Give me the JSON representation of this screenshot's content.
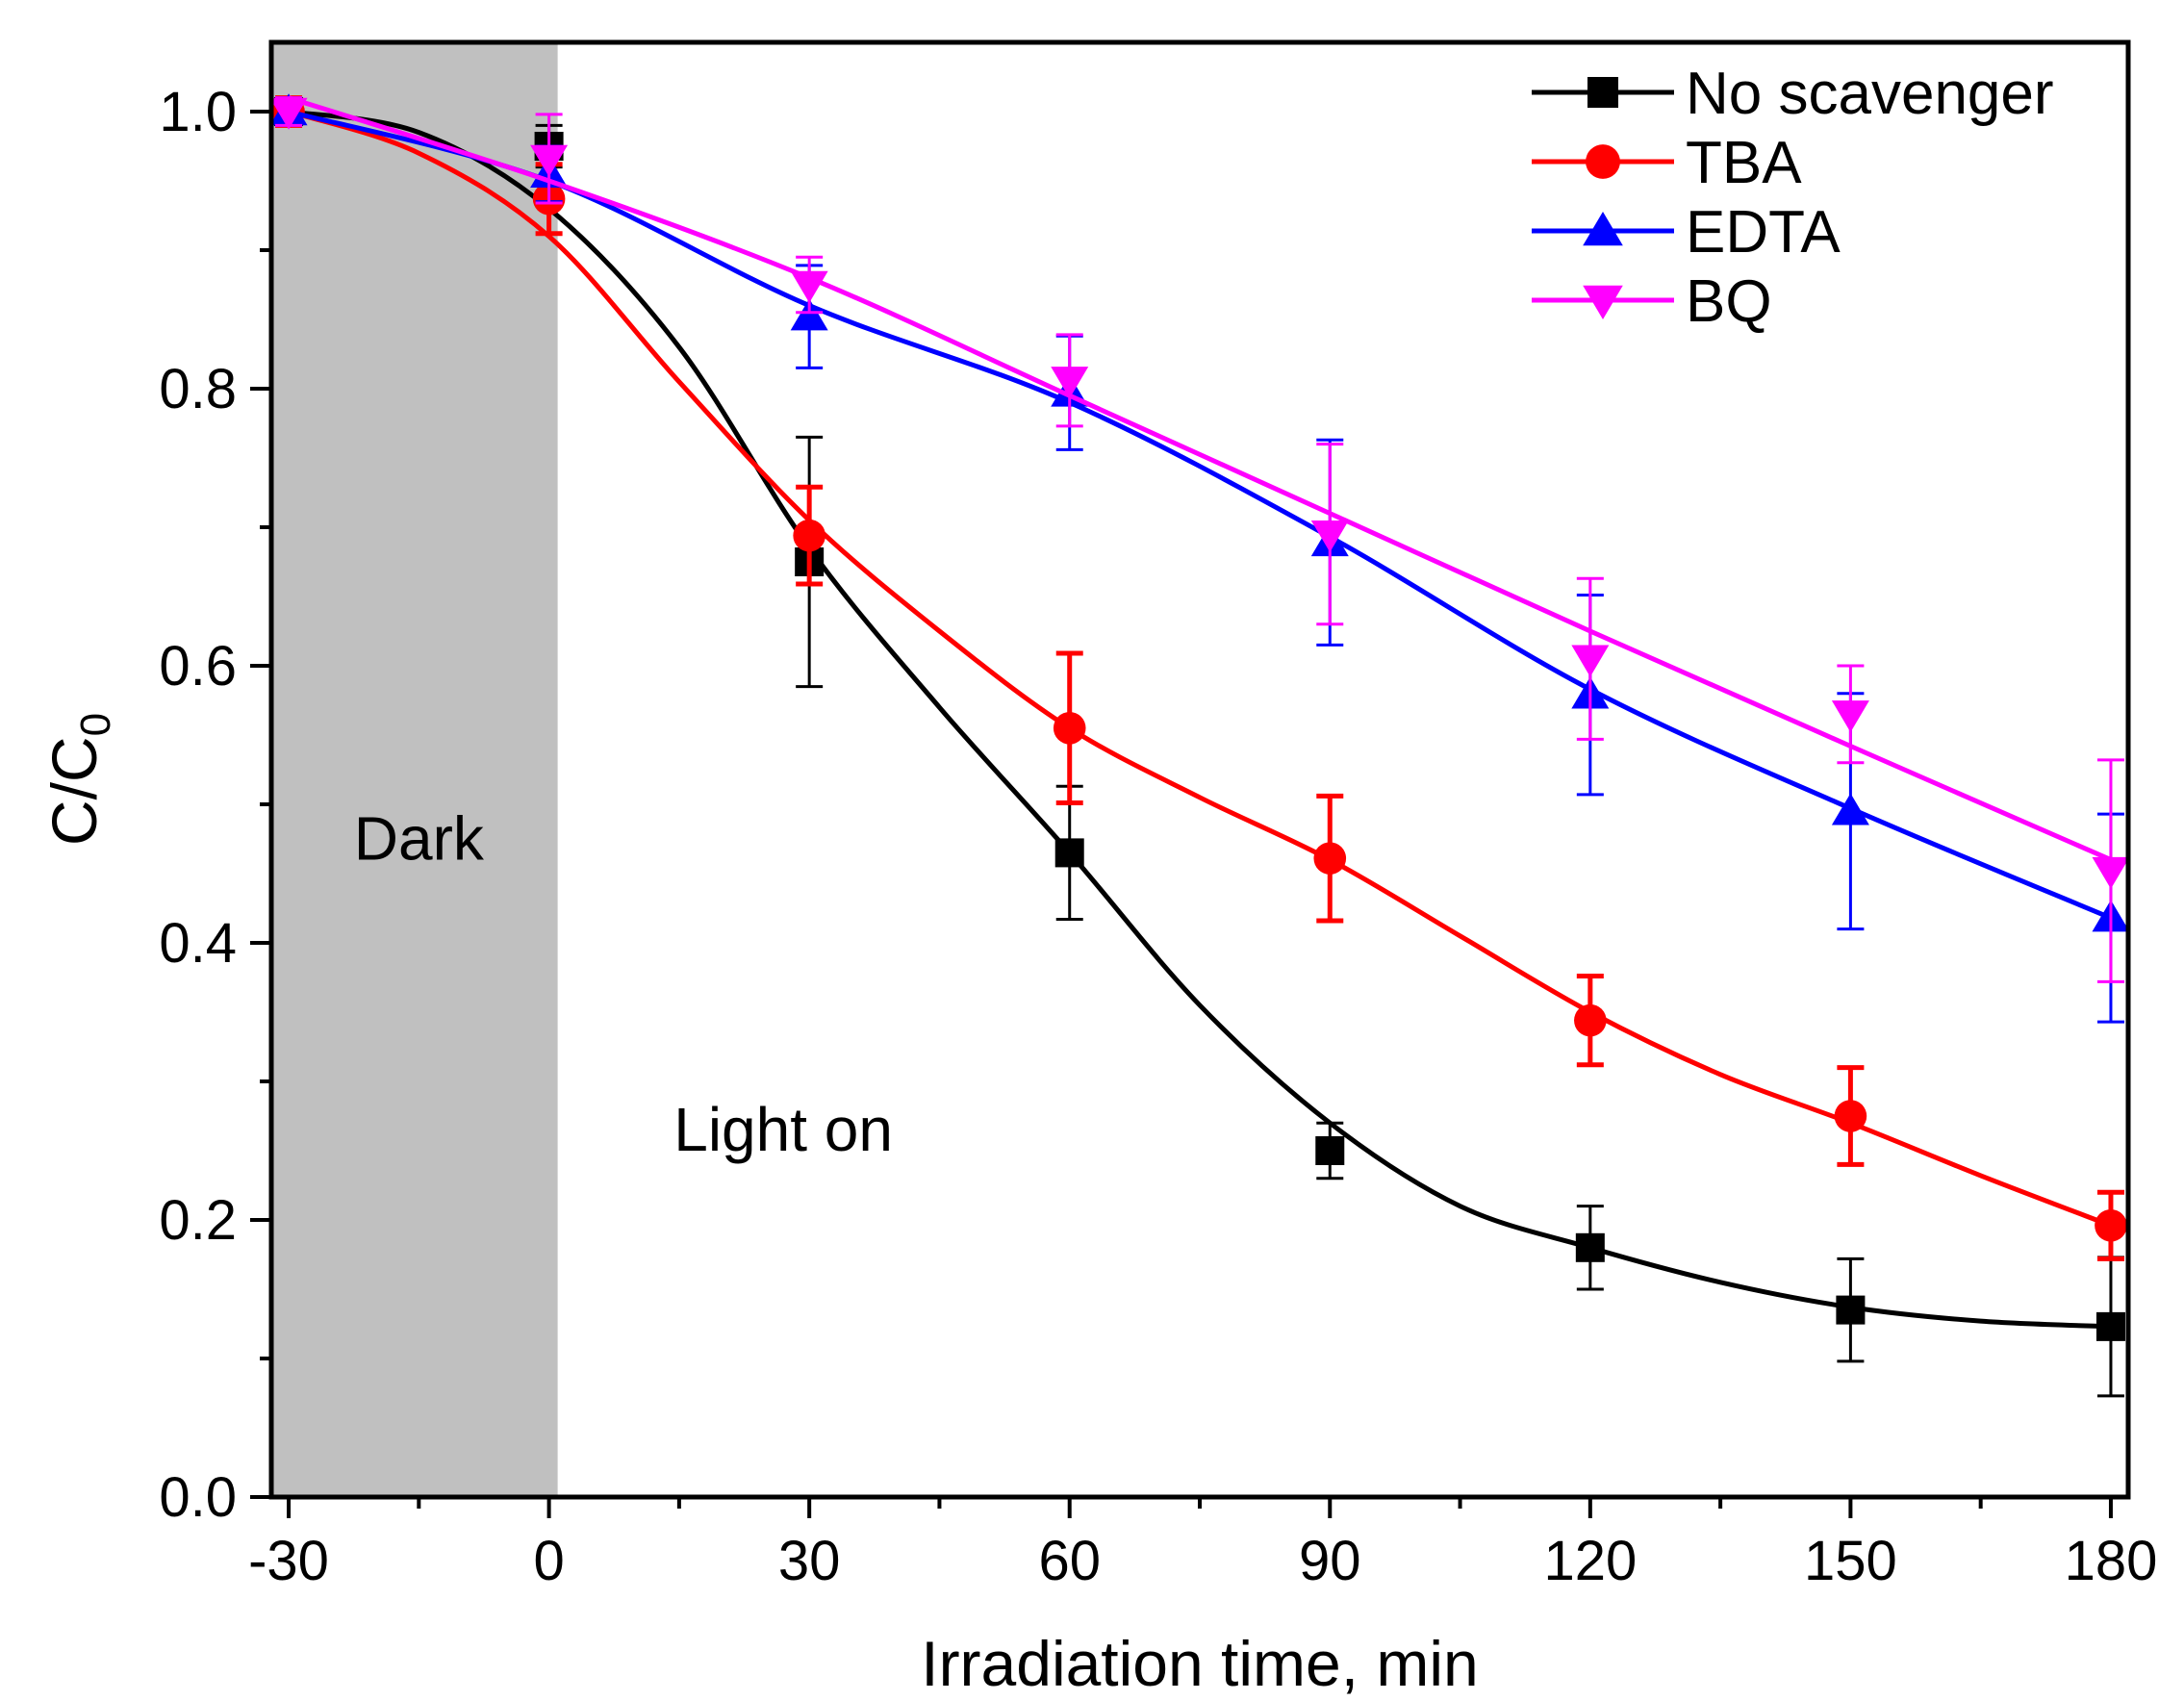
{
  "chart_data": {
    "type": "line",
    "title": "",
    "xlabel": "Irradiation time, min",
    "ylabel_main": "C/C",
    "ylabel_sub": "0",
    "xlim": [
      -32,
      182
    ],
    "ylim": [
      0,
      1.05
    ],
    "xticks": [
      -30,
      0,
      30,
      60,
      90,
      120,
      150,
      180
    ],
    "xtick_labels": [
      "-30",
      "0",
      "30",
      "60",
      "90",
      "120",
      "150",
      "180"
    ],
    "yticks": [
      0.0,
      0.2,
      0.4,
      0.6,
      0.8,
      1.0
    ],
    "ytick_labels": [
      "0.0",
      "0.2",
      "0.4",
      "0.6",
      "0.8",
      "1.0"
    ],
    "legend_position": "top-right",
    "shaded_region": {
      "x_start": -32,
      "x_end": 1,
      "color": "#c0c0c0",
      "label": "Dark"
    },
    "annotations": [
      {
        "text": "Dark",
        "x": -15,
        "y": 0.46
      },
      {
        "text": "Light on",
        "x": 27,
        "y": 0.25
      }
    ],
    "series": [
      {
        "name": "No scavenger",
        "color": "#000000",
        "marker": "square",
        "x": [
          -30,
          0,
          30,
          60,
          90,
          120,
          150,
          180
        ],
        "y": [
          1.0,
          0.975,
          0.675,
          0.465,
          0.25,
          0.18,
          0.135,
          0.123
        ],
        "err": [
          0.01,
          0.015,
          0.09,
          0.048,
          0.02,
          0.03,
          0.037,
          0.05
        ],
        "fit": [
          [
            -30,
            1.0
          ],
          [
            -15,
            0.985
          ],
          [
            0,
            0.93
          ],
          [
            15,
            0.83
          ],
          [
            30,
            0.685
          ],
          [
            45,
            0.57
          ],
          [
            60,
            0.465
          ],
          [
            75,
            0.355
          ],
          [
            90,
            0.27
          ],
          [
            105,
            0.21
          ],
          [
            120,
            0.18
          ],
          [
            135,
            0.155
          ],
          [
            150,
            0.137
          ],
          [
            165,
            0.127
          ],
          [
            180,
            0.123
          ]
        ]
      },
      {
        "name": "TBA",
        "color": "#ff0000",
        "marker": "circle",
        "x": [
          -30,
          0,
          30,
          60,
          90,
          120,
          150,
          180
        ],
        "y": [
          1.0,
          0.937,
          0.694,
          0.555,
          0.461,
          0.344,
          0.275,
          0.196
        ],
        "err": [
          0.01,
          0.025,
          0.035,
          0.054,
          0.045,
          0.032,
          0.035,
          0.024
        ],
        "fit": [
          [
            -30,
            1.0
          ],
          [
            -15,
            0.97
          ],
          [
            0,
            0.91
          ],
          [
            15,
            0.805
          ],
          [
            30,
            0.705
          ],
          [
            45,
            0.625
          ],
          [
            60,
            0.555
          ],
          [
            75,
            0.505
          ],
          [
            90,
            0.46
          ],
          [
            105,
            0.405
          ],
          [
            120,
            0.35
          ],
          [
            135,
            0.305
          ],
          [
            150,
            0.27
          ],
          [
            165,
            0.232
          ],
          [
            180,
            0.196
          ]
        ]
      },
      {
        "name": "EDTA",
        "color": "#0000ff",
        "marker": "triangle-up",
        "x": [
          -30,
          0,
          30,
          60,
          90,
          120,
          150,
          180
        ],
        "y": [
          1.0,
          0.955,
          0.852,
          0.797,
          0.689,
          0.579,
          0.495,
          0.418
        ],
        "err": [
          0.01,
          0.02,
          0.037,
          0.041,
          0.074,
          0.072,
          0.085,
          0.075
        ],
        "fit": [
          [
            -30,
            1.0
          ],
          [
            0,
            0.95
          ],
          [
            30,
            0.86
          ],
          [
            60,
            0.79
          ],
          [
            90,
            0.693
          ],
          [
            120,
            0.583
          ],
          [
            150,
            0.497
          ],
          [
            180,
            0.418
          ]
        ]
      },
      {
        "name": "BQ",
        "color": "#ff00ff",
        "marker": "triangle-down",
        "x": [
          -30,
          0,
          30,
          60,
          90,
          120,
          150,
          180
        ],
        "y": [
          1.0,
          0.966,
          0.875,
          0.806,
          0.695,
          0.605,
          0.565,
          0.452
        ],
        "err": [
          0.01,
          0.032,
          0.02,
          0.033,
          0.065,
          0.058,
          0.035,
          0.08
        ],
        "fit": [
          [
            -30,
            1.01
          ],
          [
            0,
            0.95
          ],
          [
            30,
            0.88
          ],
          [
            60,
            0.795
          ],
          [
            90,
            0.71
          ],
          [
            120,
            0.625
          ],
          [
            150,
            0.542
          ],
          [
            180,
            0.46
          ]
        ]
      }
    ]
  }
}
